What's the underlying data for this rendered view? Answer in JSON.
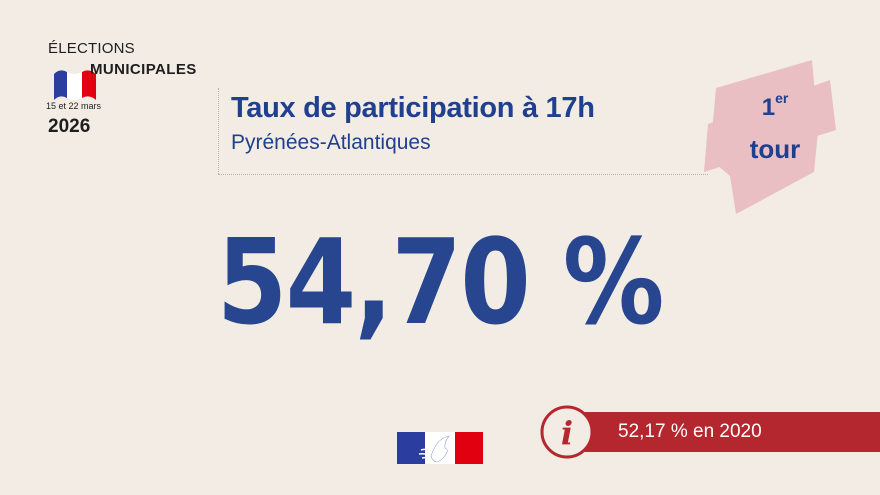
{
  "logo": {
    "line1": "ÉLECTIONS",
    "line2": "MUNICIPALES",
    "dates": "15 et 22 mars",
    "year": "2026"
  },
  "header": {
    "title": "Taux de participation à 17h",
    "subtitle": "Pyrénées-Atlantiques"
  },
  "badge": {
    "ordinal_number": "1",
    "ordinal_suffix": "er",
    "word": "tour"
  },
  "main": {
    "value": "54,70 %"
  },
  "info": {
    "text": "52,17 % en 2020",
    "icon": "info-icon"
  },
  "colors": {
    "background": "#f2ece4",
    "primary_blue": "#1f3f8f",
    "accent_red": "#b5272e",
    "badge_pink": "#e9bfc3",
    "flag_blue": "#2b3ea0",
    "flag_red": "#e1000f"
  }
}
